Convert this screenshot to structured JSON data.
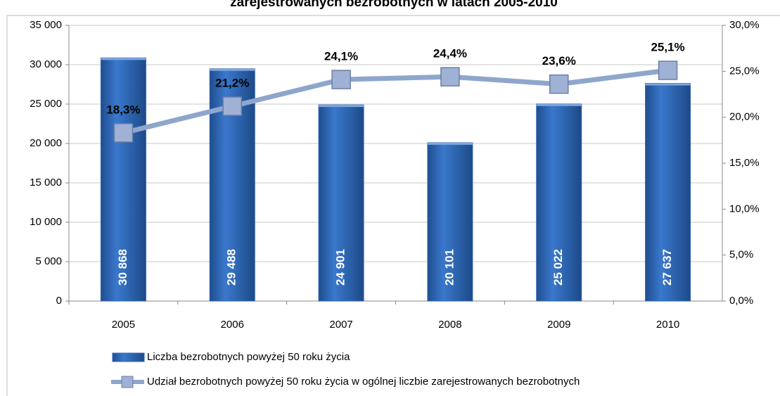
{
  "chart_data": {
    "type": "bar",
    "title": "zarejestrowanych bezrobotnych w latach 2005-2010",
    "categories": [
      "2005",
      "2006",
      "2007",
      "2008",
      "2009",
      "2010"
    ],
    "series": [
      {
        "name": "Liczba bezrobotnych powyżej 50 roku życia",
        "type": "bar",
        "color": "#2e64b4",
        "values": [
          30868,
          29488,
          24901,
          20101,
          25022,
          27637
        ],
        "value_labels": [
          "30 868",
          "29 488",
          "24 901",
          "20 101",
          "25 022",
          "27 637"
        ]
      },
      {
        "name": "Udział bezrobotnych powyżej 50 roku życia w ogólnej liczbie zarejestrowanych bezrobotnych",
        "type": "line",
        "axis": "y2",
        "color": "#8fa6cc",
        "values": [
          18.3,
          21.2,
          24.1,
          24.4,
          23.6,
          25.1
        ],
        "value_labels": [
          "18,3%",
          "21,2%",
          "24,1%",
          "24,4%",
          "23,6%",
          "25,1%"
        ]
      }
    ],
    "ylim": [
      0,
      35000
    ],
    "yticks": [
      0,
      {
        "value": 5000,
        "label": "5 000"
      },
      {
        "value": 10000,
        "label": "10 000"
      },
      {
        "value": 15000,
        "label": "15 000"
      },
      {
        "value": 20000,
        "label": "20 000"
      },
      {
        "value": 25000,
        "label": "25 000"
      },
      {
        "value": 30000,
        "label": "30 000"
      },
      {
        "value": 35000,
        "label": "35 000"
      }
    ],
    "y2lim": [
      0,
      30
    ],
    "y2ticks": [
      {
        "value": 0,
        "label": "0,0%"
      },
      {
        "value": 5,
        "label": "5,0%"
      },
      {
        "value": 10,
        "label": "10,0%"
      },
      {
        "value": 15,
        "label": "15,0%"
      },
      {
        "value": 20,
        "label": "20,0%"
      },
      {
        "value": 25,
        "label": "25,0%"
      },
      {
        "value": 30,
        "label": "30,0%"
      }
    ],
    "grid": true,
    "legend": "bottom"
  }
}
